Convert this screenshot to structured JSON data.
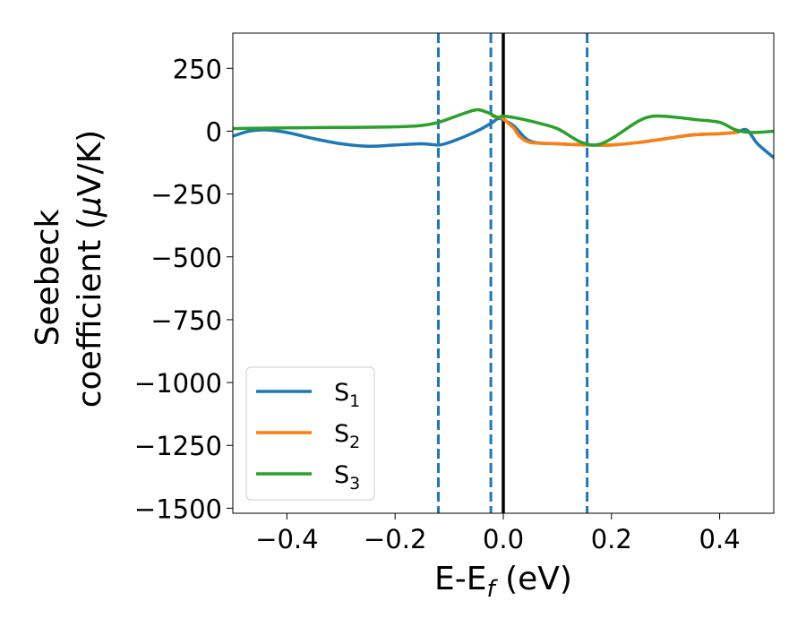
{
  "chart_data": {
    "type": "line",
    "xlabel": {
      "main": "E-E",
      "sub": "f",
      "unit": " (eV)"
    },
    "ylabel": {
      "line1": "Seebeck",
      "line2": "coefficient  (",
      "mu": "μ",
      "unit": "V/K)"
    },
    "xlim": [
      -0.5,
      0.5
    ],
    "ylim": [
      -1520,
      390
    ],
    "xticks": [
      -0.4,
      -0.2,
      0.0,
      0.2,
      0.4
    ],
    "xtick_labels": [
      "−0.4",
      "−0.2",
      "0.0",
      "0.2",
      "0.4"
    ],
    "yticks": [
      250,
      0,
      -250,
      -500,
      -750,
      -1000,
      -1250,
      -1500
    ],
    "ytick_labels": [
      "250",
      "0",
      "−250",
      "−500",
      "−750",
      "−1000",
      "−1250",
      "−1500"
    ],
    "grid": false,
    "legend_position": "lower-left",
    "vertical_lines": [
      {
        "x": 0.0,
        "style": "solid",
        "color": "#000000"
      },
      {
        "x": -0.12,
        "style": "dashed",
        "color": "#1f77b4"
      },
      {
        "x": -0.023,
        "style": "dashed",
        "color": "#1f77b4"
      },
      {
        "x": 0.155,
        "style": "dashed",
        "color": "#1f77b4"
      }
    ],
    "series": [
      {
        "name": "S",
        "sub": "1",
        "color": "#1f77b4",
        "x": [
          -0.5,
          -0.47,
          -0.44,
          -0.4,
          -0.35,
          -0.3,
          -0.25,
          -0.2,
          -0.15,
          -0.12,
          -0.1,
          -0.07,
          -0.04,
          -0.02,
          -0.01,
          0.0,
          0.02,
          0.05,
          0.1,
          0.155,
          0.2,
          0.25,
          0.3,
          0.35,
          0.4,
          0.43,
          0.45,
          0.47,
          0.5
        ],
        "y": [
          -20,
          0,
          5,
          -5,
          -30,
          -50,
          -60,
          -55,
          -50,
          -55,
          -45,
          -20,
          10,
          35,
          50,
          45,
          20,
          -40,
          -50,
          -55,
          -55,
          -45,
          -30,
          -15,
          -10,
          -5,
          5,
          -50,
          -105
        ]
      },
      {
        "name": "S",
        "sub": "2",
        "color": "#ff7f0e",
        "x": [
          -0.02,
          -0.01,
          0.0,
          0.01,
          0.02,
          0.03,
          0.05,
          0.1,
          0.155,
          0.2,
          0.25,
          0.3,
          0.35,
          0.4,
          0.43
        ],
        "y": [
          60,
          55,
          50,
          30,
          10,
          -20,
          -45,
          -50,
          -55,
          -55,
          -45,
          -30,
          -15,
          -10,
          -5
        ]
      },
      {
        "name": "S",
        "sub": "3",
        "color": "#2ca02c",
        "x": [
          -0.5,
          -0.45,
          -0.4,
          -0.3,
          -0.2,
          -0.15,
          -0.12,
          -0.08,
          -0.05,
          -0.03,
          -0.01,
          0.0,
          0.03,
          0.06,
          0.1,
          0.14,
          0.17,
          0.2,
          0.25,
          0.28,
          0.32,
          0.36,
          0.4,
          0.43,
          0.46,
          0.5
        ],
        "y": [
          10,
          12,
          13,
          15,
          17,
          23,
          35,
          65,
          85,
          75,
          55,
          60,
          50,
          35,
          10,
          -40,
          -55,
          -30,
          40,
          60,
          55,
          45,
          35,
          5,
          -5,
          0
        ]
      }
    ]
  }
}
